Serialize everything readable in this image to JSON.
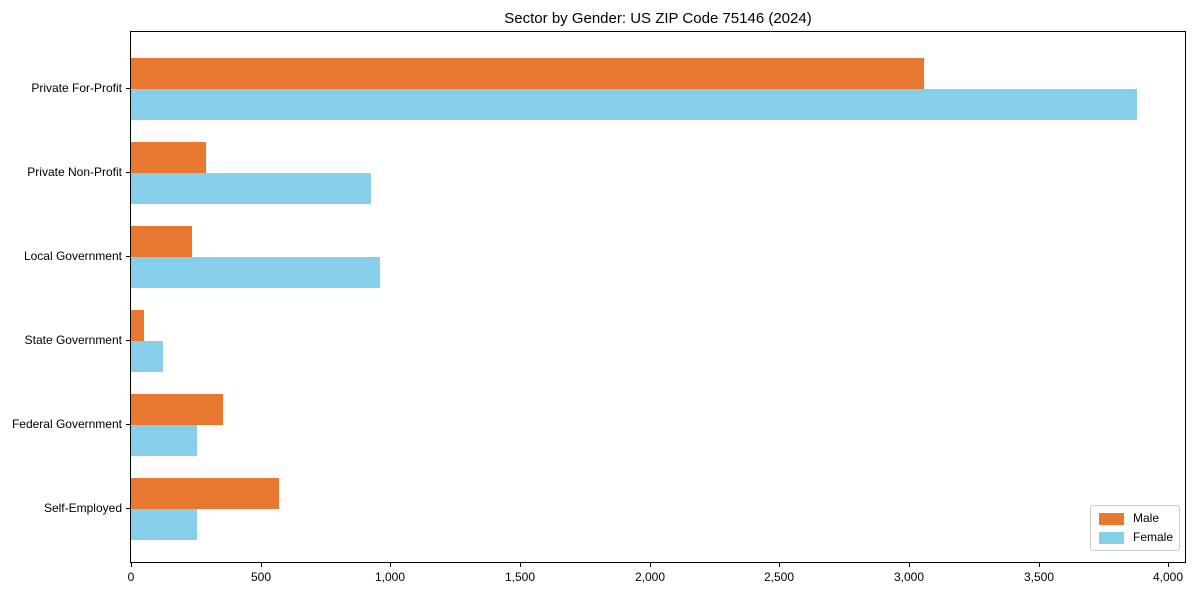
{
  "title": "Sector by Gender: US ZIP Code 75146 (2024)",
  "chart_data": {
    "type": "bar",
    "orientation": "horizontal",
    "title": "Sector by Gender: US ZIP Code 75146 (2024)",
    "categories": [
      "Private For-Profit",
      "Private Non-Profit",
      "Local Government",
      "State Government",
      "Federal Government",
      "Self-Employed"
    ],
    "series": [
      {
        "name": "Male",
        "color": "#e8772f",
        "values": [
          3060,
          290,
          235,
          50,
          355,
          570
        ]
      },
      {
        "name": "Female",
        "color": "#87ceeb",
        "values": [
          3880,
          925,
          960,
          125,
          255,
          255
        ]
      }
    ],
    "xlabel": "",
    "ylabel": "",
    "xlim": [
      0,
      4065
    ],
    "xticks": [
      0,
      500,
      1000,
      1500,
      2000,
      2500,
      3000,
      3500,
      4000
    ],
    "xtick_labels": [
      "0",
      "500",
      "1,000",
      "1,500",
      "2,000",
      "2,500",
      "3,000",
      "3,500",
      "4,000"
    ],
    "grid": false,
    "legend_position": "lower right"
  }
}
